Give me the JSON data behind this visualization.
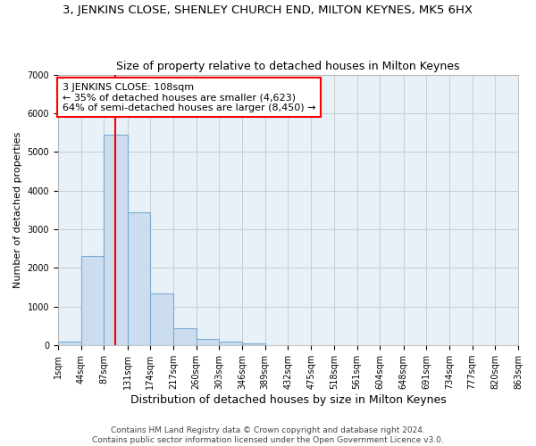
{
  "title": "3, JENKINS CLOSE, SHENLEY CHURCH END, MILTON KEYNES, MK5 6HX",
  "subtitle": "Size of property relative to detached houses in Milton Keynes",
  "xlabel": "Distribution of detached houses by size in Milton Keynes",
  "ylabel": "Number of detached properties",
  "bin_edges": [
    1,
    44,
    87,
    131,
    174,
    217,
    260,
    303,
    346,
    389,
    432,
    475,
    518,
    561,
    604,
    648,
    691,
    734,
    777,
    820,
    863
  ],
  "bar_heights": [
    100,
    2300,
    5450,
    3450,
    1350,
    450,
    175,
    100,
    50,
    0,
    0,
    0,
    0,
    0,
    0,
    0,
    0,
    0,
    0,
    0
  ],
  "bar_facecolor": "#ccddf0",
  "bar_edgecolor": "#7aaad0",
  "bar_linewidth": 0.8,
  "red_line_x": 108,
  "annotation_title": "3 JENKINS CLOSE: 108sqm",
  "annotation_line1": "← 35% of detached houses are smaller (4,623)",
  "annotation_line2": "64% of semi-detached houses are larger (8,450) →",
  "annotation_box_color": "white",
  "annotation_box_edgecolor": "red",
  "red_line_color": "red",
  "ylim": [
    0,
    7000
  ],
  "yticks": [
    0,
    1000,
    2000,
    3000,
    4000,
    5000,
    6000,
    7000
  ],
  "grid_color": "#cccccc",
  "background_color": "#e8f0f8",
  "footer_line1": "Contains HM Land Registry data © Crown copyright and database right 2024.",
  "footer_line2": "Contains public sector information licensed under the Open Government Licence v3.0.",
  "title_fontsize": 9.5,
  "subtitle_fontsize": 9,
  "xlabel_fontsize": 9,
  "ylabel_fontsize": 8,
  "tick_fontsize": 7,
  "footer_fontsize": 6.5,
  "annotation_fontsize": 8
}
